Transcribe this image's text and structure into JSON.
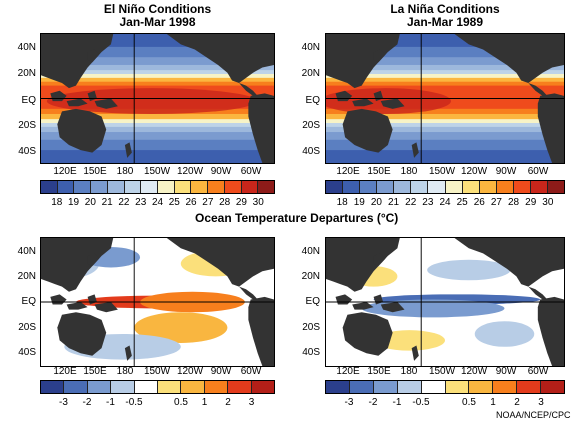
{
  "panels": [
    {
      "title_line1": "El Niño Conditions",
      "title_line2": "Jan-Mar 1998"
    },
    {
      "title_line1": "La Niña Conditions",
      "title_line2": "Jan-Mar 1989"
    }
  ],
  "center_title": "Ocean Temperature Departures (°C)",
  "credit": "NOAA/NCEP/CPC",
  "lat_labels": [
    "40N",
    "20N",
    "EQ",
    "20S",
    "40S"
  ],
  "lon_labels": [
    "120E",
    "150E",
    "180",
    "150W",
    "120W",
    "90W",
    "60W"
  ],
  "chart_data": [
    {
      "type": "heatmap",
      "title": "El Niño Conditions Jan-Mar 1998",
      "colorbar_ticks": [
        "18",
        "19",
        "20",
        "21",
        "22",
        "23",
        "24",
        "25",
        "26",
        "27",
        "28",
        "29",
        "30"
      ],
      "colors": [
        "#2b3f8c",
        "#3d5fae",
        "#5b7fc1",
        "#7b9bcf",
        "#9db8dc",
        "#bdd3e8",
        "#dfeaf3",
        "#f7f3c6",
        "#fbe07b",
        "#fbb63f",
        "#f77f1d",
        "#ef4b1c",
        "#c9261b",
        "#8d1b19"
      ]
    },
    {
      "type": "heatmap",
      "title": "La Niña Conditions Jan-Mar 1989",
      "colorbar_ticks": [
        "18",
        "19",
        "20",
        "21",
        "22",
        "23",
        "24",
        "25",
        "26",
        "27",
        "28",
        "29",
        "30"
      ],
      "colors": [
        "#2b3f8c",
        "#3d5fae",
        "#5b7fc1",
        "#7b9bcf",
        "#9db8dc",
        "#bdd3e8",
        "#dfeaf3",
        "#f7f3c6",
        "#fbe07b",
        "#fbb63f",
        "#f77f1d",
        "#ef4b1c",
        "#c9261b",
        "#8d1b19"
      ]
    },
    {
      "type": "heatmap",
      "title": "Ocean Temperature Departures (°C) — El Niño",
      "colorbar_ticks": [
        "-3",
        "-2",
        "-1",
        "-0.5",
        "0.5",
        "1",
        "2",
        "3"
      ],
      "colors": [
        "#2b3f8c",
        "#4a6db5",
        "#7a9bcf",
        "#b8cde6",
        "#ffffff",
        "#fbe07b",
        "#f9b640",
        "#f77f1d",
        "#e33b1c",
        "#b31f18"
      ]
    },
    {
      "type": "heatmap",
      "title": "Ocean Temperature Departures (°C) — La Niña",
      "colorbar_ticks": [
        "-3",
        "-2",
        "-1",
        "-0.5",
        "0.5",
        "1",
        "2",
        "3"
      ],
      "colors": [
        "#2b3f8c",
        "#4a6db5",
        "#7a9bcf",
        "#b8cde6",
        "#ffffff",
        "#fbe07b",
        "#f9b640",
        "#f77f1d",
        "#e33b1c",
        "#b31f18"
      ]
    }
  ]
}
